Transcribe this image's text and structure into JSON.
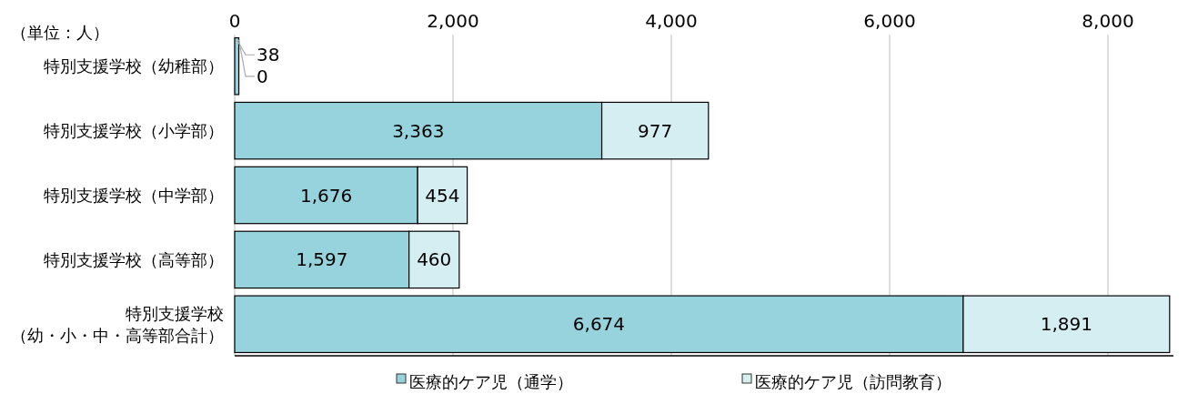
{
  "chart_data": {
    "type": "bar",
    "orientation": "horizontal",
    "stacked": true,
    "categories": [
      "特別支援学校（幼稚部）",
      "特別支援学校（小学部）",
      "特別支援学校（中学部）",
      "特別支援学校（高等部）",
      "特別支援学校（幼・小・中・高等部合計）"
    ],
    "series": [
      {
        "name": "医療的ケア児（通学）",
        "color": "#96d3dc",
        "values": [
          38,
          3363,
          1676,
          1597,
          6674
        ],
        "value_labels": [
          "38",
          "3,363",
          "1,676",
          "1,597",
          "6,674"
        ]
      },
      {
        "name": "医療的ケア児（訪問教育）",
        "color": "#d5eef2",
        "values": [
          0,
          977,
          454,
          460,
          1891
        ],
        "value_labels": [
          "0",
          "977",
          "454",
          "460",
          "1,891"
        ]
      }
    ],
    "xlim": [
      0,
      8600
    ],
    "xticks": [
      {
        "value": 0,
        "label": "0"
      },
      {
        "value": 2000,
        "label": "2,000"
      },
      {
        "value": 4000,
        "label": "4,000"
      },
      {
        "value": 6000,
        "label": "6,000"
      },
      {
        "value": 8000,
        "label": "8,000"
      }
    ],
    "grid": "x",
    "legend": "bottom",
    "annotations": [
      "（単位：人）"
    ]
  }
}
